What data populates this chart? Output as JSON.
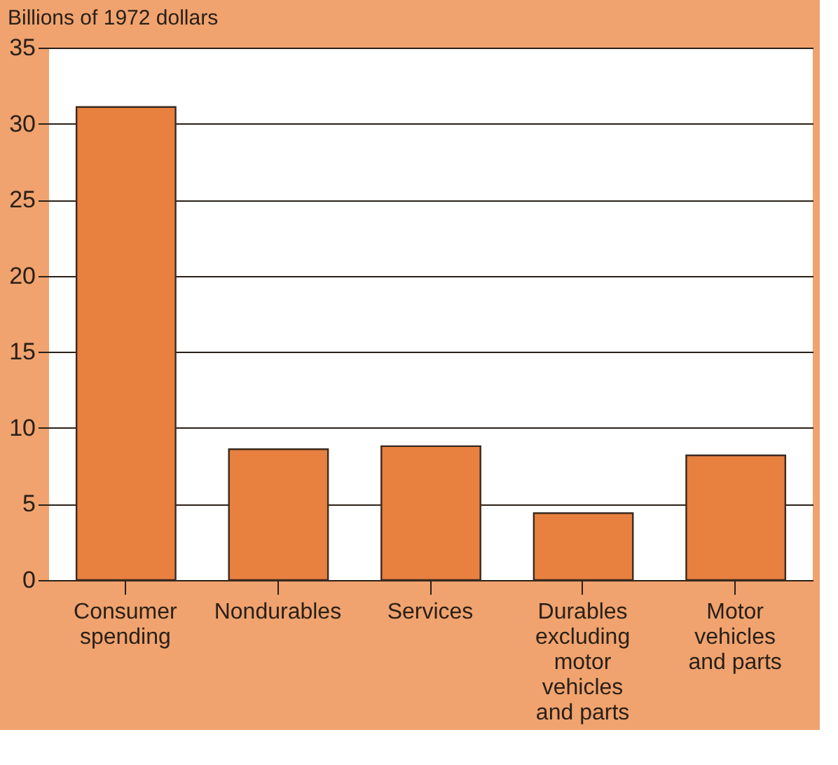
{
  "chart_data": {
    "type": "bar",
    "ylabel": "Billions of 1972 dollars",
    "categories": [
      "Consumer spending",
      "Nondurables",
      "Services",
      "Durables excluding motor vehicles and parts",
      "Motor vehicles and parts"
    ],
    "values": [
      31.1,
      8.6,
      8.8,
      4.4,
      8.2
    ],
    "color": "#e8803f",
    "ylim": [
      0,
      35
    ],
    "yticks": [
      0,
      5,
      10,
      15,
      20,
      25,
      30,
      35
    ],
    "grid": "y"
  }
}
